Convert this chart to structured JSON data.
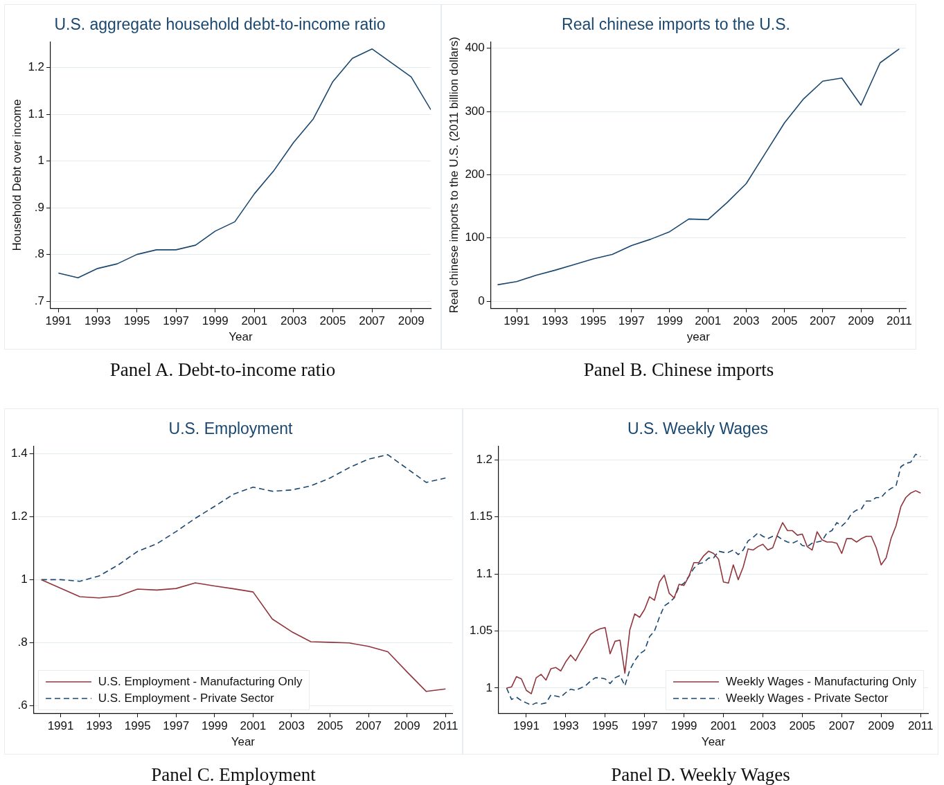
{
  "chart_data": [
    {
      "type": "line",
      "title": "U.S. aggregate household debt-to-income ratio",
      "xlabel": "Year",
      "ylabel": "Household Debt over income",
      "grid": "y",
      "line_style": "solid",
      "x": [
        1991,
        1992,
        1993,
        1994,
        1995,
        1996,
        1997,
        1998,
        1999,
        2000,
        2001,
        2002,
        2003,
        2004,
        2005,
        2006,
        2007,
        2008,
        2009,
        2010
      ],
      "series": [
        {
          "color": "#1a476f",
          "values": [
            0.76,
            0.75,
            0.77,
            0.78,
            0.8,
            0.81,
            0.81,
            0.82,
            0.85,
            0.87,
            0.93,
            0.98,
            1.04,
            1.09,
            1.17,
            1.22,
            1.24,
            1.21,
            1.18,
            1.11
          ]
        }
      ],
      "xlim": [
        1990.6,
        2010
      ],
      "xticks": [
        1991,
        1993,
        1995,
        1997,
        1999,
        2001,
        2003,
        2005,
        2007,
        2009
      ],
      "ylim": [
        0.685,
        1.255
      ],
      "yticks": [
        {
          "value": 0.7,
          "label": ".7"
        },
        {
          "value": 0.8,
          "label": ".8"
        },
        {
          "value": 0.9,
          "label": ".9"
        },
        1,
        1.1,
        1.2
      ],
      "annotations": [
        "Panel A. Debt-to-income ratio"
      ]
    },
    {
      "type": "line",
      "title": "Real chinese imports to the U.S.",
      "xlabel": "year",
      "ylabel": "Real chinese imports to the U.S. (2011 billion dollars)",
      "grid": "y",
      "line_style": "solid",
      "x": [
        1990,
        1991,
        1992,
        1993,
        1994,
        1995,
        1996,
        1997,
        1998,
        1999,
        2000,
        2001,
        2002,
        2003,
        2004,
        2005,
        2006,
        2007,
        2008,
        2009,
        2010,
        2011
      ],
      "series": [
        {
          "color": "#1a476f",
          "values": [
            26,
            31,
            41,
            49,
            58,
            67,
            74,
            88,
            98,
            110,
            130,
            129,
            156,
            186,
            234,
            282,
            320,
            348,
            353,
            310,
            377,
            399
          ]
        }
      ],
      "xlim": [
        1989.65,
        2011.35
      ],
      "xticks": [
        1991,
        1993,
        1995,
        1997,
        1999,
        2001,
        2003,
        2005,
        2007,
        2009,
        2011
      ],
      "ylim": [
        -11,
        410
      ],
      "yticks": [
        0,
        100,
        200,
        300,
        400
      ],
      "annotations": [
        "Panel B. Chinese imports"
      ]
    },
    {
      "type": "line",
      "title": "U.S. Employment",
      "xlabel": "Year",
      "grid": "y",
      "legend": "bottom left",
      "x": [
        1990,
        1991,
        1992,
        1993,
        1994,
        1995,
        1996,
        1997,
        1998,
        1999,
        2000,
        2001,
        2002,
        2003,
        2004,
        2005,
        2006,
        2007,
        2008,
        2009,
        2010,
        2011
      ],
      "series": [
        {
          "name": "U.S. Employment - Manufacturing Only",
          "color": "#90353b",
          "line_style": "solid",
          "values": [
            1.0,
            0.973,
            0.946,
            0.942,
            0.948,
            0.97,
            0.967,
            0.972,
            0.99,
            0.98,
            0.971,
            0.961,
            0.875,
            0.835,
            0.803,
            0.801,
            0.799,
            0.788,
            0.771,
            0.707,
            0.645,
            0.653
          ]
        },
        {
          "name": "U.S. Employment - Private Sector",
          "color": "#1a476f",
          "line_style": "dashed",
          "values": [
            1.0,
            1.0,
            0.995,
            1.012,
            1.047,
            1.09,
            1.114,
            1.153,
            1.195,
            1.233,
            1.272,
            1.294,
            1.281,
            1.285,
            1.298,
            1.323,
            1.356,
            1.383,
            1.397,
            1.353,
            1.309,
            1.323
          ]
        }
      ],
      "xlim": [
        1989.6,
        2011.35
      ],
      "xticks": [
        1991,
        1993,
        1995,
        1997,
        1999,
        2001,
        2003,
        2005,
        2007,
        2009,
        2011
      ],
      "ylim": [
        0.576,
        1.424
      ],
      "yticks": [
        {
          "value": 0.6,
          "label": ".6"
        },
        {
          "value": 0.8,
          "label": ".8"
        },
        1,
        1.2,
        1.4
      ],
      "annotations": [
        "Panel C. Employment"
      ]
    },
    {
      "type": "line",
      "title": "U.S. Weekly Wages",
      "xlabel": "Year",
      "grid": "y",
      "legend": "bottom right",
      "x": [
        1990,
        1990.25,
        1990.5,
        1990.75,
        1991,
        1991.25,
        1991.5,
        1991.75,
        1992,
        1992.25,
        1992.5,
        1992.75,
        1993,
        1993.25,
        1993.5,
        1993.75,
        1994,
        1994.25,
        1994.5,
        1994.75,
        1995,
        1995.25,
        1995.5,
        1995.75,
        1996,
        1996.25,
        1996.5,
        1996.75,
        1997,
        1997.25,
        1997.5,
        1997.75,
        1998,
        1998.25,
        1998.5,
        1998.75,
        1999,
        1999.25,
        1999.5,
        1999.75,
        2000,
        2000.25,
        2000.5,
        2000.75,
        2001,
        2001.25,
        2001.5,
        2001.75,
        2002,
        2002.25,
        2002.5,
        2002.75,
        2003,
        2003.25,
        2003.5,
        2003.75,
        2004,
        2004.25,
        2004.5,
        2004.75,
        2005,
        2005.25,
        2005.5,
        2005.75,
        2006,
        2006.25,
        2006.5,
        2006.75,
        2007,
        2007.25,
        2007.5,
        2007.75,
        2008,
        2008.25,
        2008.5,
        2008.75,
        2009,
        2009.25,
        2009.5,
        2009.75,
        2010,
        2010.25,
        2010.5,
        2010.75,
        2011
      ],
      "series": [
        {
          "name": "Weekly Wages - Manufacturing Only",
          "color": "#90353b",
          "line_style": "solid",
          "values": [
            1.0,
            1.001,
            1.01,
            1.008,
            0.998,
            0.995,
            1.009,
            1.012,
            1.007,
            1.017,
            1.018,
            1.015,
            1.023,
            1.029,
            1.024,
            1.032,
            1.039,
            1.047,
            1.05,
            1.052,
            1.053,
            1.03,
            1.041,
            1.042,
            1.013,
            1.051,
            1.065,
            1.062,
            1.069,
            1.08,
            1.077,
            1.093,
            1.099,
            1.083,
            1.079,
            1.091,
            1.09,
            1.098,
            1.11,
            1.11,
            1.116,
            1.12,
            1.118,
            1.113,
            1.093,
            1.092,
            1.108,
            1.095,
            1.106,
            1.122,
            1.121,
            1.124,
            1.126,
            1.121,
            1.123,
            1.135,
            1.145,
            1.138,
            1.138,
            1.134,
            1.135,
            1.124,
            1.121,
            1.137,
            1.13,
            1.128,
            1.128,
            1.127,
            1.118,
            1.131,
            1.131,
            1.128,
            1.131,
            1.133,
            1.133,
            1.123,
            1.108,
            1.114,
            1.131,
            1.142,
            1.159,
            1.167,
            1.171,
            1.173,
            1.171
          ]
        },
        {
          "name": "Weekly Wages - Private Sector",
          "color": "#1a476f",
          "line_style": "dashed",
          "values": [
            1.0,
            0.99,
            0.992,
            0.989,
            0.987,
            0.985,
            0.987,
            0.986,
            0.987,
            0.994,
            0.993,
            0.992,
            0.996,
            0.999,
            0.998,
            1.0,
            1.002,
            1.006,
            1.009,
            1.009,
            1.008,
            1.004,
            1.009,
            1.011,
            1.002,
            1.016,
            1.024,
            1.03,
            1.033,
            1.045,
            1.05,
            1.062,
            1.072,
            1.075,
            1.079,
            1.089,
            1.092,
            1.098,
            1.105,
            1.109,
            1.11,
            1.114,
            1.114,
            1.12,
            1.119,
            1.119,
            1.121,
            1.117,
            1.121,
            1.129,
            1.132,
            1.136,
            1.133,
            1.131,
            1.133,
            1.133,
            1.13,
            1.128,
            1.127,
            1.129,
            1.125,
            1.124,
            1.127,
            1.128,
            1.129,
            1.136,
            1.138,
            1.145,
            1.142,
            1.146,
            1.153,
            1.156,
            1.157,
            1.164,
            1.164,
            1.167,
            1.167,
            1.172,
            1.175,
            1.177,
            1.194,
            1.197,
            1.198,
            1.205,
            1.203
          ]
        }
      ],
      "xlim": [
        1989.6,
        2011.38
      ],
      "xticks": [
        1991,
        1993,
        1995,
        1997,
        1999,
        2001,
        2003,
        2005,
        2007,
        2009,
        2011
      ],
      "ylim": [
        0.978,
        1.212
      ],
      "yticks": [
        1,
        1.05,
        1.1,
        1.15,
        1.2
      ],
      "annotations": [
        "Panel D. Weekly Wages"
      ]
    }
  ]
}
